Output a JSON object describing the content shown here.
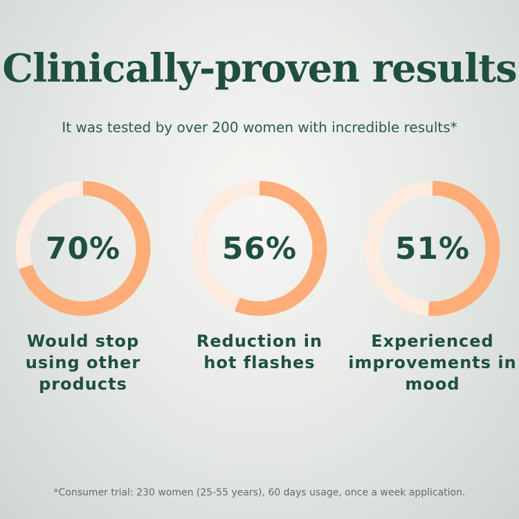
{
  "header": {
    "title": "Clinically-proven results",
    "subtitle": "It was tested by over 200 women with incredible results*"
  },
  "chart_data": {
    "type": "pie",
    "variant": "donut",
    "colors": {
      "filled": "#ffad78",
      "remaining": "#fdebdf"
    },
    "items": [
      {
        "value": 70,
        "display": "70%",
        "label": "Would stop using other products"
      },
      {
        "value": 56,
        "display": "56%",
        "label": "Reduction in hot flashes"
      },
      {
        "value": 51,
        "display": "51%",
        "label": "Experienced improvements in mood"
      }
    ]
  },
  "footnote": "*Consumer trial: 230 women (25-55 years), 60 days usage, once a week application."
}
